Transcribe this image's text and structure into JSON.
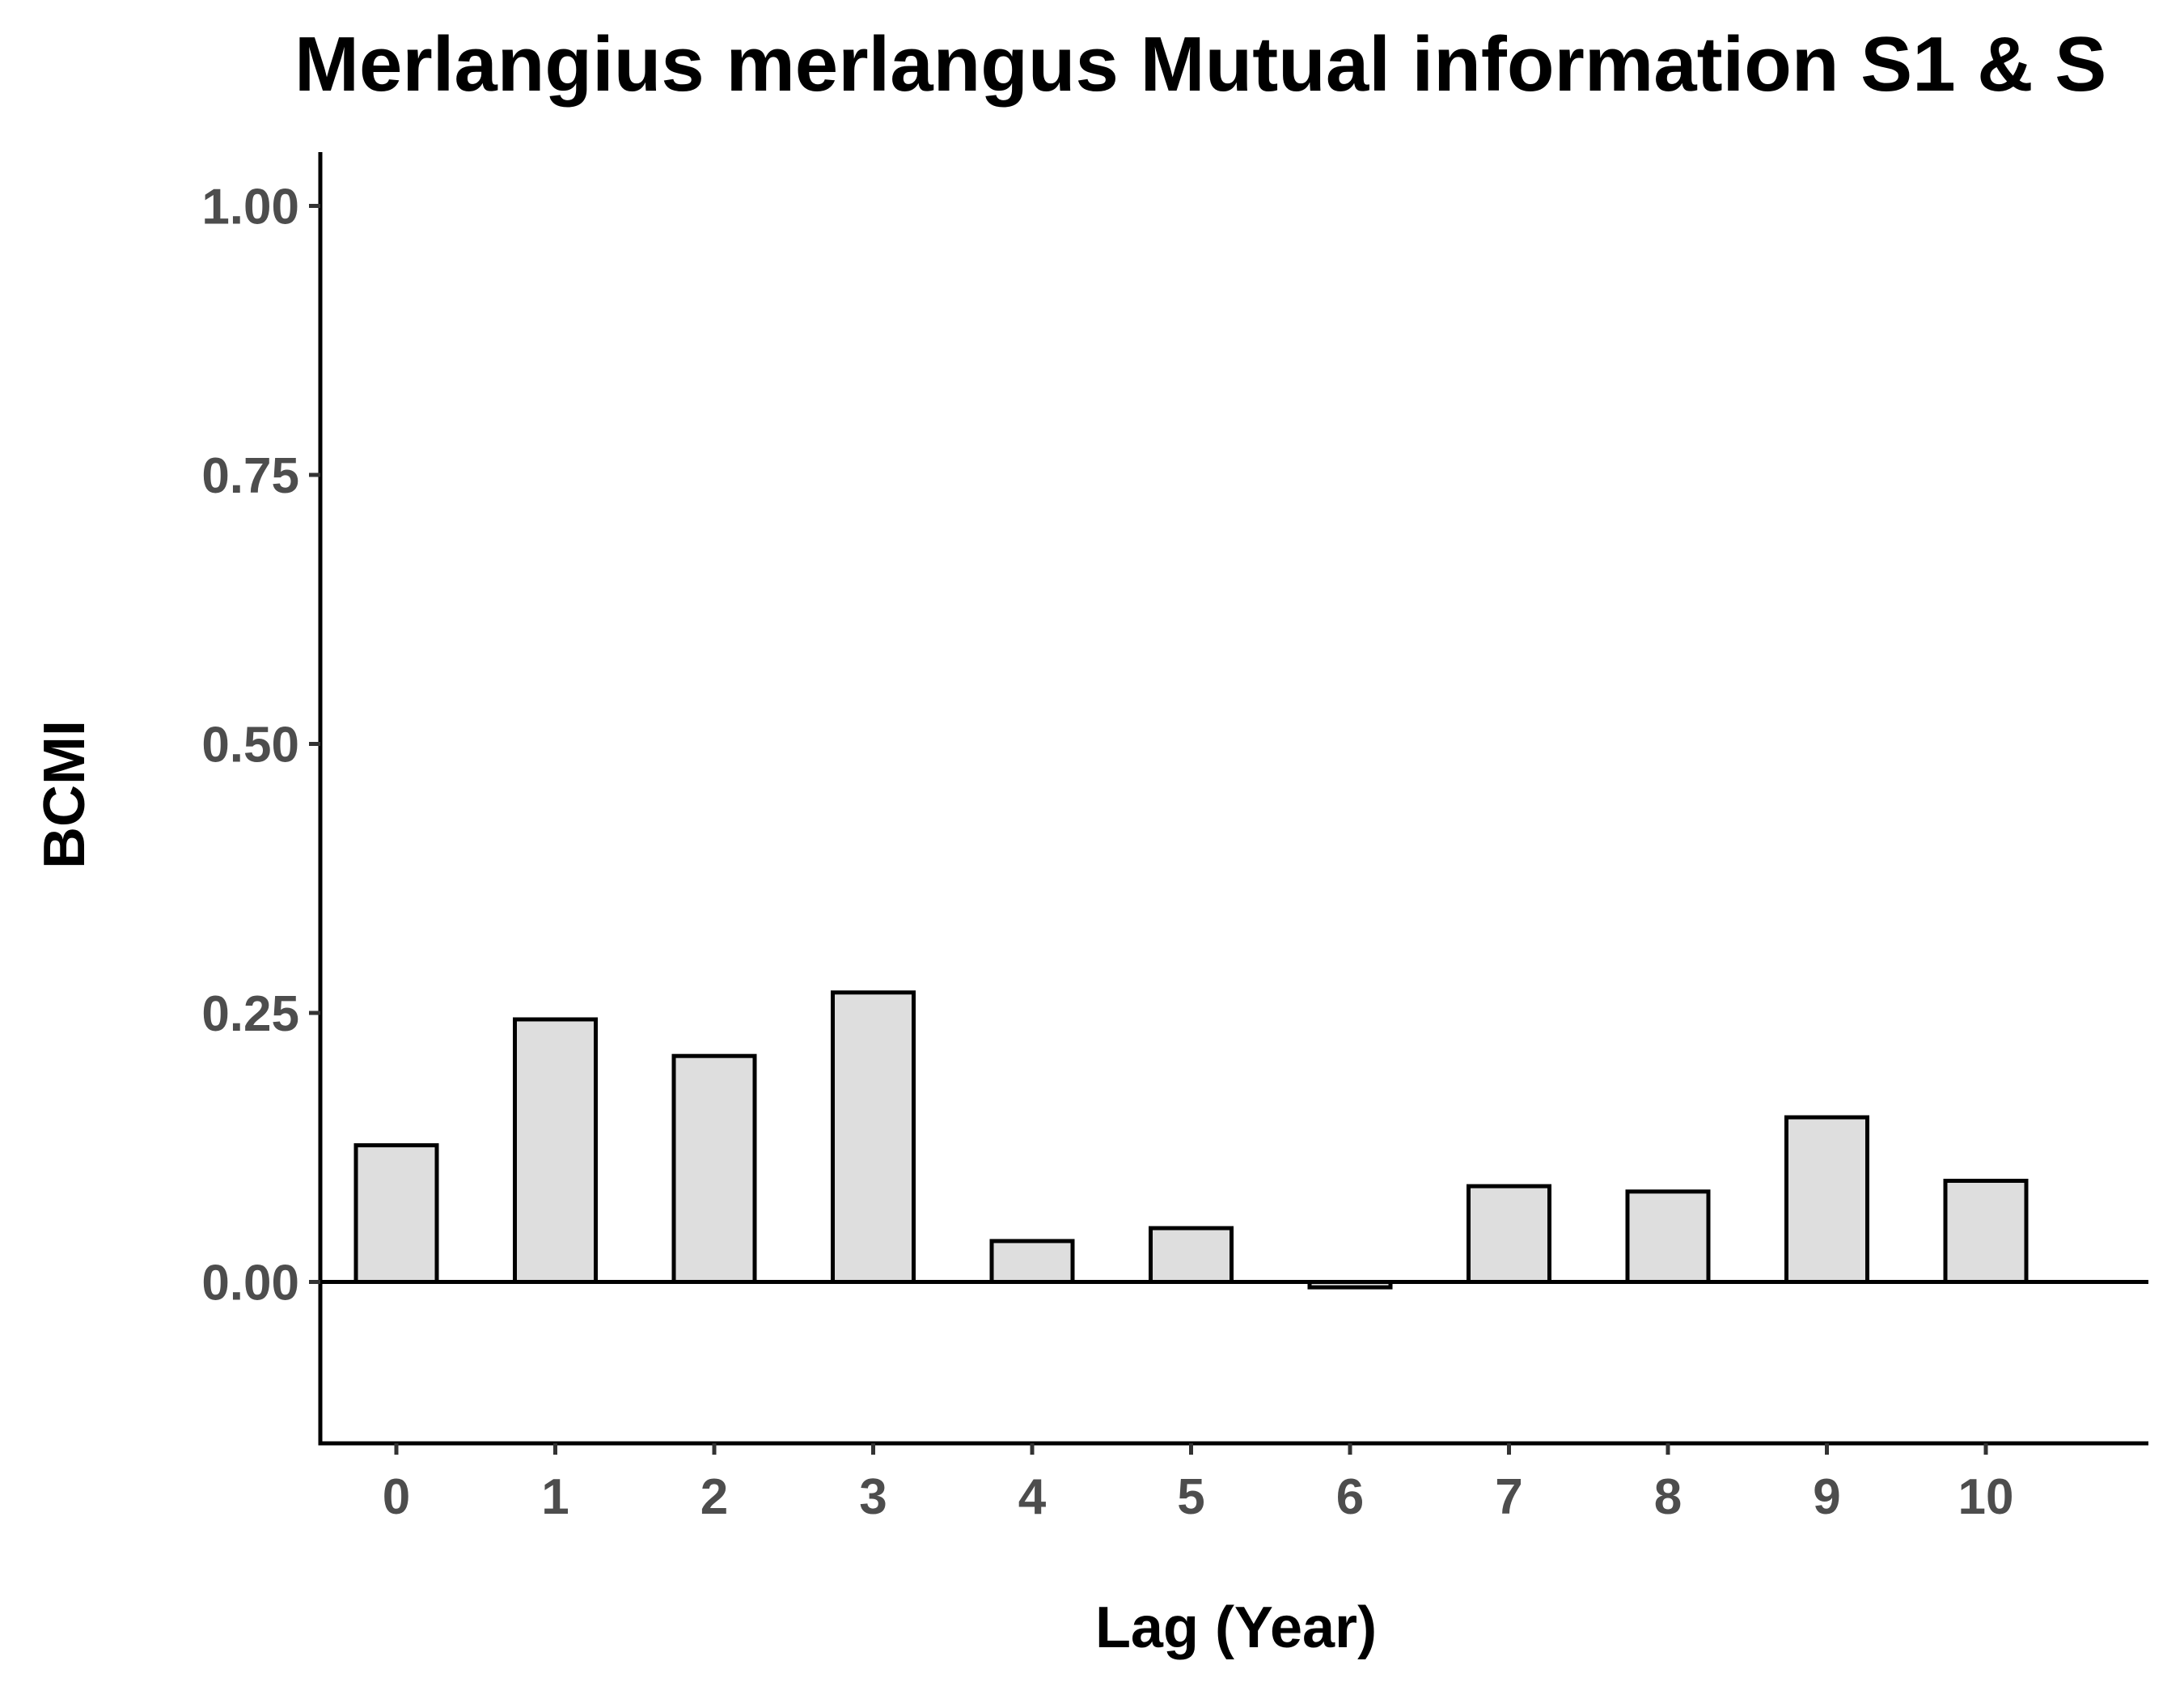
{
  "chart_data": {
    "type": "bar",
    "title": "Merlangius merlangus Mutual information S1 & S",
    "xlabel": "Lag (Year)",
    "ylabel": "BCMI",
    "categories": [
      "0",
      "1",
      "2",
      "3",
      "4",
      "5",
      "6",
      "7",
      "8",
      "9",
      "10"
    ],
    "values": [
      0.127,
      0.244,
      0.21,
      0.269,
      0.038,
      0.05,
      -0.005,
      0.089,
      0.084,
      0.153,
      0.094
    ],
    "ylim": [
      -0.15,
      1.05
    ],
    "yticks": [
      {
        "value": 0.0,
        "label": "0.00"
      },
      {
        "value": 0.25,
        "label": "0.25"
      },
      {
        "value": 0.5,
        "label": "0.50"
      },
      {
        "value": 0.75,
        "label": "0.75"
      },
      {
        "value": 1.0,
        "label": "1.00"
      }
    ],
    "reference_line": 0,
    "grid": false,
    "legend": "none",
    "colors": {
      "bar_fill": "#dedede",
      "bar_stroke": "#000000",
      "tick_label": "#4d4d4d"
    }
  }
}
